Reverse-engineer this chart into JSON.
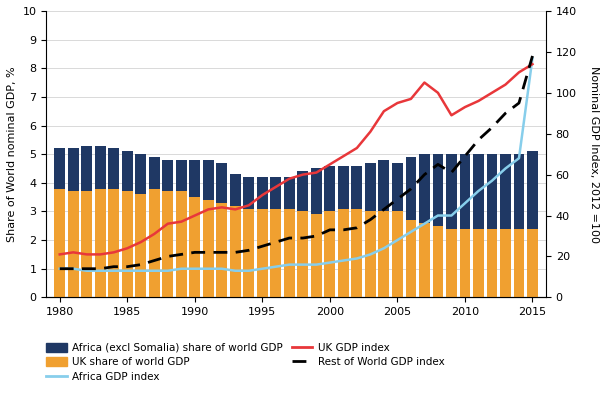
{
  "years": [
    1980,
    1981,
    1982,
    1983,
    1984,
    1985,
    1986,
    1987,
    1988,
    1989,
    1990,
    1991,
    1992,
    1993,
    1994,
    1995,
    1996,
    1997,
    1998,
    1999,
    2000,
    2001,
    2002,
    2003,
    2004,
    2005,
    2006,
    2007,
    2008,
    2009,
    2010,
    2011,
    2012,
    2013,
    2014,
    2015
  ],
  "africa_share": [
    5.2,
    5.2,
    5.3,
    5.3,
    5.2,
    5.1,
    5.0,
    4.9,
    4.8,
    4.8,
    4.8,
    4.8,
    4.7,
    4.3,
    4.2,
    4.2,
    4.2,
    4.2,
    4.4,
    4.5,
    4.6,
    4.6,
    4.6,
    4.7,
    4.8,
    4.7,
    4.9,
    5.0,
    5.0,
    5.0,
    5.0,
    5.0,
    5.0,
    5.0,
    5.0,
    5.1
  ],
  "uk_share": [
    3.8,
    3.7,
    3.7,
    3.8,
    3.8,
    3.7,
    3.6,
    3.8,
    3.7,
    3.7,
    3.5,
    3.4,
    3.3,
    3.2,
    3.1,
    3.1,
    3.1,
    3.1,
    3.0,
    2.9,
    3.0,
    3.1,
    3.1,
    3.0,
    3.0,
    3.0,
    2.7,
    2.6,
    2.5,
    2.4,
    2.4,
    2.4,
    2.4,
    2.4,
    2.4,
    2.4
  ],
  "africa_gdp_index": [
    14,
    14,
    13,
    13,
    13,
    13,
    13,
    13,
    13,
    14,
    14,
    14,
    14,
    13,
    13,
    14,
    15,
    16,
    16,
    16,
    17,
    18,
    19,
    21,
    24,
    28,
    32,
    36,
    40,
    40,
    46,
    52,
    57,
    63,
    68,
    117
  ],
  "uk_gdp_index": [
    21,
    22,
    21,
    21,
    22,
    24,
    27,
    31,
    36,
    37,
    40,
    43,
    44,
    43,
    45,
    50,
    54,
    58,
    60,
    61,
    65,
    69,
    73,
    81,
    91,
    95,
    97,
    105,
    100,
    89,
    93,
    96,
    100,
    104,
    110,
    114
  ],
  "world_gdp_index": [
    14,
    14,
    14,
    14,
    15,
    15,
    16,
    18,
    20,
    21,
    22,
    22,
    22,
    22,
    23,
    25,
    27,
    29,
    29,
    30,
    33,
    33,
    34,
    38,
    43,
    48,
    53,
    60,
    65,
    61,
    69,
    77,
    83,
    90,
    95,
    118
  ],
  "africa_color": "#1F3864",
  "uk_bar_color": "#F0A030",
  "africa_line_color": "#87CEEB",
  "uk_line_color": "#E8373A",
  "world_line_color": "#000000",
  "ylabel_left": "Share of World nominal GDP, %",
  "ylabel_right": "Nominal GDP Index, 2012 =100",
  "ylim_left": [
    0,
    10
  ],
  "ylim_right": [
    0,
    140
  ],
  "yticks_left": [
    0,
    1,
    2,
    3,
    4,
    5,
    6,
    7,
    8,
    9,
    10
  ],
  "yticks_right": [
    0,
    20,
    40,
    60,
    80,
    100,
    120,
    140
  ],
  "xticks": [
    1980,
    1985,
    1990,
    1995,
    2000,
    2005,
    2010,
    2015
  ],
  "xlim": [
    1979.0,
    2016.0
  ],
  "legend_africa_bar": "Africa (excl Somalia) share of world GDP",
  "legend_uk_bar": "UK share of world GDP",
  "legend_africa_line": "Africa GDP index",
  "legend_uk_line": "UK GDP index",
  "legend_world_line": "Rest of World GDP index"
}
